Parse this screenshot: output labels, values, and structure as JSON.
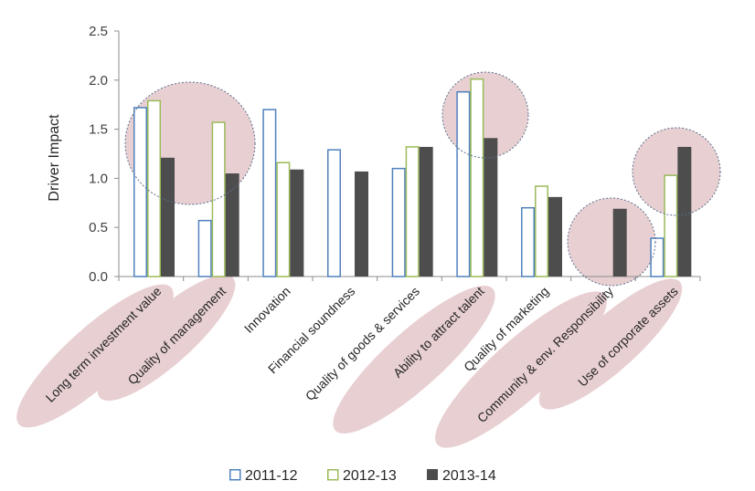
{
  "chart_data": {
    "type": "bar",
    "ylabel": "Driver Impact",
    "xlabel": "",
    "ylim": [
      0,
      2.5
    ],
    "yticks": [
      "0.0",
      "0.5",
      "1.0",
      "1.5",
      "2.0",
      "2.5"
    ],
    "grid": false,
    "legend_position": "bottom",
    "categories": [
      "Long term investment value",
      "Quality of management",
      "Innovation",
      "Financial soundness",
      "Quality of goods & services",
      "Ability to attract talent",
      "Quality of marketing",
      "Community & env. Responsibility",
      "Use of corporate assets"
    ],
    "series": [
      {
        "name": "2011-12",
        "values": [
          1.72,
          0.57,
          1.7,
          1.29,
          1.1,
          1.88,
          0.7,
          null,
          0.39
        ],
        "color": "#4f81bd",
        "style": "outline"
      },
      {
        "name": "2012-13",
        "values": [
          1.79,
          1.57,
          1.16,
          null,
          1.32,
          2.01,
          0.92,
          null,
          1.03
        ],
        "color": "#9bbb59",
        "style": "outline"
      },
      {
        "name": "2013-14",
        "values": [
          1.21,
          1.05,
          1.09,
          1.07,
          1.32,
          1.41,
          0.81,
          0.69,
          1.32
        ],
        "color": "#4d4d4d",
        "style": "filled"
      }
    ],
    "highlight_color": "#e8cfd2"
  }
}
